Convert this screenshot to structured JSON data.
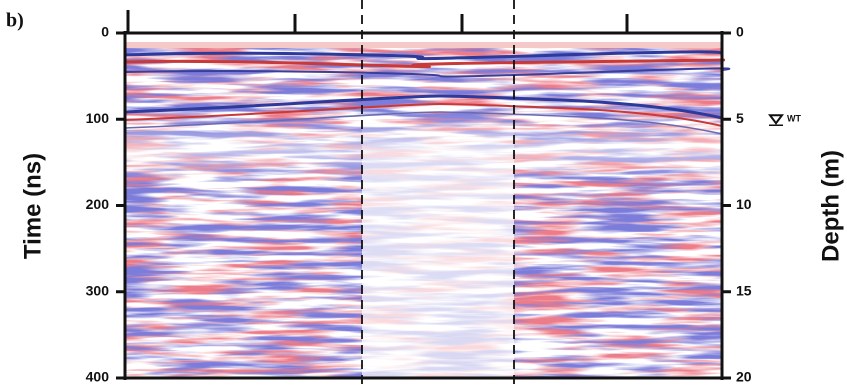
{
  "chart_data": {
    "type": "radargram",
    "panel_label": "b)",
    "ylabel": "Time (ns)",
    "y2label": "Depth (m)",
    "ylim": [
      0,
      400
    ],
    "yticks": [
      0,
      100,
      200,
      300,
      400
    ],
    "y2lim": [
      0,
      20
    ],
    "y2ticks": [
      0,
      5,
      10,
      15,
      20
    ],
    "annotations": [
      {
        "text": "WT",
        "y2": 5
      }
    ]
  }
}
